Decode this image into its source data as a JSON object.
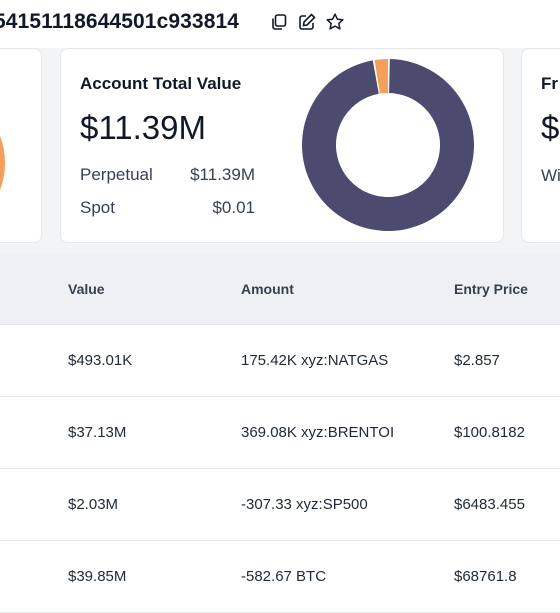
{
  "header": {
    "address": "54151118644501c933814",
    "icons": [
      "copy-icon",
      "edit-icon",
      "star-icon"
    ]
  },
  "account_card": {
    "title": "Account Total Value",
    "total": "$11.39M",
    "rows": [
      {
        "label": "Perpetual",
        "value": "$11.39M"
      },
      {
        "label": "Spot",
        "value": "$0.01"
      }
    ],
    "donut": {
      "perpetual_fraction": 0.9999,
      "colors": {
        "perpetual": "#4c4a6e",
        "spot": "#f5a05a"
      }
    }
  },
  "right_card": {
    "title": "Fr",
    "big": "$",
    "sub": "Wi"
  },
  "table": {
    "columns": [
      "Value",
      "Amount",
      "Entry Price"
    ],
    "rows": [
      {
        "value": "$493.01K",
        "amount": "175.42K xyz:NATGAS",
        "entry": "$2.857"
      },
      {
        "value": "$37.13M",
        "amount": "369.08K xyz:BRENTOI",
        "entry": "$100.8182"
      },
      {
        "value": "$2.03M",
        "amount": "-307.33 xyz:SP500",
        "entry": "$6483.455"
      },
      {
        "value": "$39.85M",
        "amount": "-582.67 BTC",
        "entry": "$68761.8"
      }
    ]
  }
}
